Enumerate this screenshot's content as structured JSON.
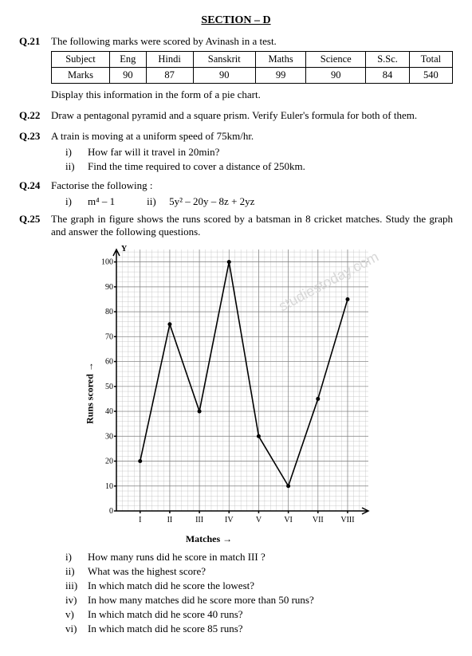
{
  "section_title": "SECTION – D",
  "q21": {
    "num": "Q.21",
    "text": "The following marks were scored by Avinash in a test.",
    "table": {
      "columns": [
        "Subject",
        "Eng",
        "Hindi",
        "Sanskrit",
        "Maths",
        "Science",
        "S.Sc.",
        "Total"
      ],
      "rows": [
        [
          "Marks",
          "90",
          "87",
          "90",
          "99",
          "90",
          "84",
          "540"
        ]
      ]
    },
    "after": "Display this information in the form of a pie chart."
  },
  "q22": {
    "num": "Q.22",
    "text": "Draw a pentagonal pyramid and a square prism. Verify Euler's formula for both of them."
  },
  "q23": {
    "num": "Q.23",
    "text": "A train is moving at a uniform speed of 75km/hr.",
    "subs": [
      {
        "label": "i)",
        "text": "How far will it travel in 20min?"
      },
      {
        "label": "ii)",
        "text": "Find the time required to cover a distance of 250km."
      }
    ]
  },
  "q24": {
    "num": "Q.24",
    "text": "Factorise the following :",
    "parts": [
      {
        "label": "i)",
        "expr": "m⁴ – 1"
      },
      {
        "label": "ii)",
        "expr": "5y² – 20y – 8z + 2yz"
      }
    ]
  },
  "q25": {
    "num": "Q.25",
    "text": "The graph in figure shows the runs scored by a batsman in 8 cricket matches. Study the graph and answer the following questions.",
    "chart": {
      "type": "line",
      "ylabel": "Runs scored →",
      "xlabel": "Matches →",
      "y_axis_symbol": "Y",
      "ylim": [
        0,
        105
      ],
      "ytick_step": 10,
      "yticks": [
        0,
        10,
        20,
        30,
        40,
        50,
        60,
        70,
        80,
        90,
        100
      ],
      "ytick_labels": [
        "0",
        "10",
        "20",
        "30",
        "40",
        "50",
        "60",
        "70",
        "80",
        "90",
        "100"
      ],
      "xticks": [
        1,
        2,
        3,
        4,
        5,
        6,
        7,
        8
      ],
      "xtick_labels": [
        "I",
        "II",
        "III",
        "IV",
        "V",
        "VI",
        "VII",
        "VIII"
      ],
      "values": [
        20,
        75,
        40,
        100,
        30,
        10,
        45,
        85
      ],
      "line_color": "#000000",
      "grid_minor_color": "#bfbfbf",
      "grid_major_color": "#808080",
      "background_color": "#ffffff",
      "watermark": "studiestoday.com"
    },
    "subs": [
      {
        "label": "i)",
        "text": "How many runs did he score in match III ?"
      },
      {
        "label": "ii)",
        "text": "What was the highest score?"
      },
      {
        "label": "iii)",
        "text": "In which match did he score the lowest?"
      },
      {
        "label": "iv)",
        "text": "In how many matches did he score more than 50 runs?"
      },
      {
        "label": "v)",
        "text": "In which match did he score 40 runs?"
      },
      {
        "label": "vi)",
        "text": "In which match did he score 85 runs?"
      }
    ]
  }
}
